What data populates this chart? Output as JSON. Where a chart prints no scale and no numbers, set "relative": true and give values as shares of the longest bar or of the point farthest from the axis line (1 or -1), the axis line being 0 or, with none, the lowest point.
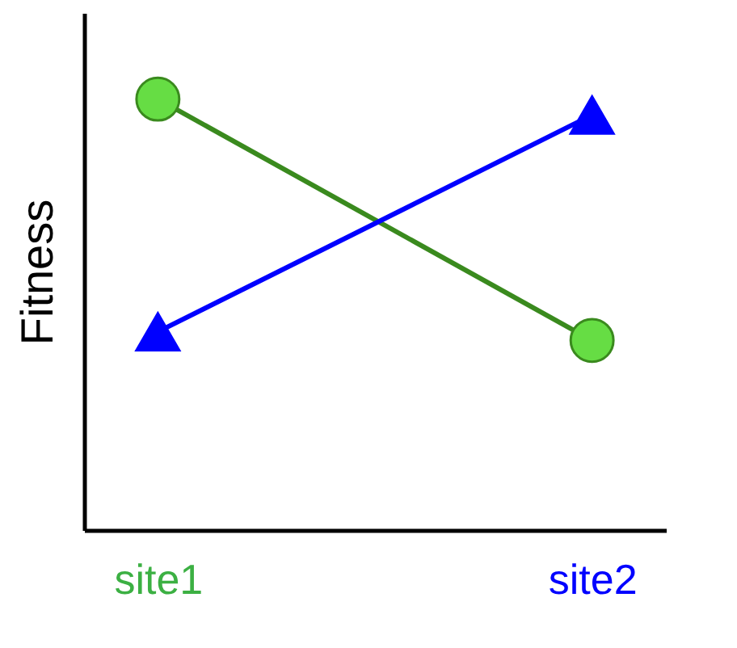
{
  "chart_data": {
    "type": "line",
    "ylabel": "Fitness",
    "categories": [
      "site1",
      "site2"
    ],
    "colors": [
      "#3cb043",
      "#0000ff"
    ],
    "relative": true,
    "grid": false,
    "series": [
      {
        "color": "#3a8a1e",
        "values": [
          1,
          0.44
        ],
        "marker": "circle"
      },
      {
        "color": "#0000ff",
        "values": [
          0.46,
          0.963
        ],
        "marker": "triangle"
      }
    ]
  }
}
